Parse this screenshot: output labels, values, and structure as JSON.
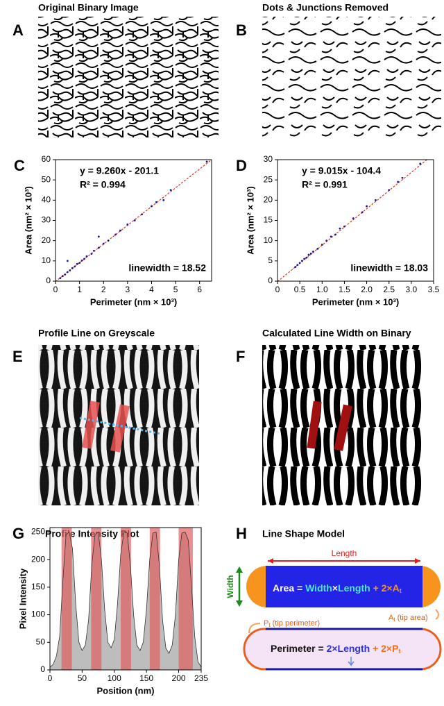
{
  "panels": [
    {
      "letter": "A",
      "title": "Original Binary Image"
    },
    {
      "letter": "B",
      "title": "Dots & Junctions Removed"
    },
    {
      "letter": "E",
      "title": "Profile Line on Greyscale"
    },
    {
      "letter": "F",
      "title": "Calculated Line Width on Binary"
    }
  ],
  "chart_data": [
    {
      "type": "scatter",
      "letter": "C",
      "xlabel": "Perimeter (nm × 10³)",
      "ylabel": "Area (nm² × 10³)",
      "color": "#1c1a8a",
      "x": [
        0.2,
        0.3,
        0.4,
        0.5,
        0.6,
        0.7,
        0.8,
        0.9,
        1.0,
        1.1,
        1.2,
        1.3,
        1.5,
        1.6,
        1.8,
        2.0,
        2.2,
        2.5,
        2.7,
        3.0,
        3.3,
        3.6,
        4.0,
        4.2,
        4.5,
        4.8,
        6.3,
        0.5,
        1.8
      ],
      "values": [
        1.5,
        2.5,
        3.3,
        4.5,
        5.3,
        6.4,
        7.2,
        8.5,
        9.0,
        10.2,
        11,
        12.3,
        13.5,
        15,
        16.5,
        18.5,
        20,
        23,
        25,
        28,
        30,
        33,
        37,
        39,
        40,
        45,
        59,
        10,
        22
      ],
      "fit_line": {
        "x": [
          0,
          6.5
        ],
        "y": [
          -0.2,
          60
        ]
      },
      "fit_color": "#e03020",
      "equation": "y = 9.260x - 201.1",
      "r2": "R² = 0.994",
      "linewidth": "linewidth = 18.52",
      "xlim": [
        0,
        6.5
      ],
      "xticks": [
        0,
        1,
        2,
        3,
        4,
        5,
        6
      ],
      "ylim": [
        0,
        60
      ],
      "yticks": [
        0,
        10,
        20,
        30,
        40,
        50,
        60
      ]
    },
    {
      "type": "scatter",
      "letter": "D",
      "xlabel": "Perimeter (nm × 10³)",
      "ylabel": "Area (nm² × 10³)",
      "color": "#1c1a8a",
      "x": [
        0.4,
        0.45,
        0.5,
        0.55,
        0.6,
        0.65,
        0.7,
        0.75,
        0.8,
        0.9,
        1.0,
        1.1,
        1.2,
        1.3,
        1.4,
        1.5,
        1.7,
        1.9,
        2.0,
        2.2,
        2.5,
        2.7,
        2.8,
        3.2
      ],
      "values": [
        3.5,
        4,
        4.5,
        5,
        5.5,
        5.8,
        6.5,
        6.8,
        7.3,
        8,
        9,
        10,
        11,
        11.5,
        13,
        13.5,
        15.5,
        17,
        18.5,
        20,
        22.5,
        24.5,
        25.5,
        29
      ],
      "fit_line": {
        "x": [
          0,
          3.35
        ],
        "y": [
          -0.1,
          30
        ]
      },
      "fit_color": "#e03020",
      "equation": "y = 9.015x - 104.4",
      "r2": "R² = 0.991",
      "linewidth": "linewidth = 18.03",
      "xlim": [
        0,
        3.5
      ],
      "xticks": [
        0,
        0.5,
        {
          "value": 1,
          "label": "1.0"
        },
        1.5,
        {
          "value": 2,
          "label": "2.0"
        },
        2.5,
        {
          "value": 3,
          "label": "3.0"
        },
        3.5
      ],
      "ylim": [
        0,
        30
      ],
      "yticks": [
        0,
        5,
        10,
        15,
        20,
        25,
        30
      ]
    },
    {
      "type": "area",
      "letter": "G",
      "title": "Profile Intensity Plot",
      "xlabel": "Position (nm)",
      "ylabel": "Pixel Intensity",
      "color": "#bdbdbd",
      "band_color": "#e06060",
      "x": [
        0,
        5,
        10,
        15,
        20,
        25,
        30,
        35,
        40,
        45,
        50,
        55,
        60,
        65,
        70,
        75,
        80,
        85,
        90,
        95,
        100,
        105,
        110,
        115,
        120,
        125,
        130,
        135,
        140,
        145,
        150,
        155,
        160,
        165,
        170,
        175,
        180,
        185,
        190,
        195,
        200,
        205,
        210,
        215,
        220,
        225,
        230,
        235
      ],
      "values": [
        5,
        10,
        25,
        60,
        160,
        245,
        250,
        220,
        120,
        50,
        35,
        45,
        90,
        190,
        245,
        250,
        200,
        110,
        50,
        40,
        55,
        120,
        210,
        250,
        248,
        190,
        100,
        45,
        35,
        50,
        110,
        200,
        248,
        250,
        190,
        90,
        40,
        30,
        45,
        100,
        200,
        248,
        250,
        235,
        150,
        60,
        15,
        5
      ],
      "bands": [
        [
          18,
          34
        ],
        [
          64,
          80
        ],
        [
          110,
          126
        ],
        [
          155,
          171
        ],
        [
          200,
          222
        ]
      ],
      "xlim": [
        0,
        235
      ],
      "xticks": [
        0,
        50,
        100,
        150,
        200,
        235
      ],
      "ylim": [
        0,
        258
      ],
      "yticks": [
        0,
        50,
        100,
        150,
        200,
        250
      ]
    }
  ],
  "diagram": {
    "letter": "H",
    "title": "Line Shape Model",
    "length": "Length",
    "width": "Width",
    "area_formula": [
      "Area = ",
      "Width",
      "×",
      "Length",
      " + 2×A",
      "t"
    ],
    "tip_area": [
      "A",
      "t",
      " (tip area)"
    ],
    "tip_perimeter": [
      "P",
      "t",
      " (tip perimeter)"
    ],
    "perimeter_formula": [
      "Perimeter = ",
      "2×Length",
      " + 2×P",
      "t"
    ]
  }
}
